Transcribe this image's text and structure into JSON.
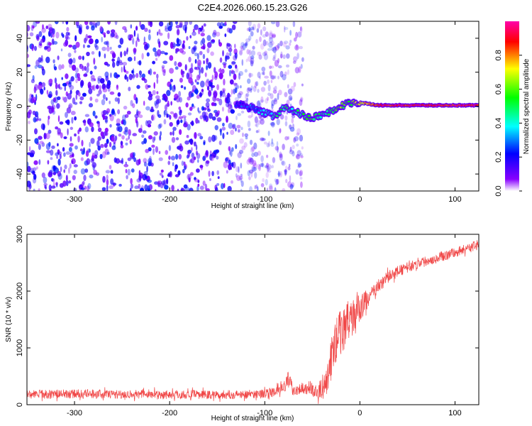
{
  "chart_data": [
    {
      "type": "heatmap",
      "title": "C2E4.2026.060.15.23.G26",
      "xlabel": "Height of straight line (km)",
      "ylabel": "Frequency (Hz)",
      "xlim": [
        -350,
        125
      ],
      "ylim": [
        -50,
        50
      ],
      "x_ticks": [
        -300,
        -200,
        -100,
        0,
        100
      ],
      "x_tick_labels": [
        "-300",
        "-200",
        "-100",
        "0",
        "100"
      ],
      "y_ticks": [
        -40,
        -20,
        0,
        20,
        40
      ],
      "y_tick_labels": [
        "-40",
        "-20",
        "0",
        "20",
        "40"
      ],
      "colorbar": {
        "label": "Normalized spectral amplitude",
        "range": [
          0,
          1
        ],
        "ticks": [
          0.0,
          0.2,
          0.4,
          0.6,
          0.8
        ],
        "tick_labels": [
          "0.0",
          "0.2",
          "0.4",
          "0.6",
          "0.8"
        ]
      },
      "ridge": {
        "x": [
          -130,
          -120,
          -110,
          -100,
          -90,
          -80,
          -70,
          -60,
          -50,
          -40,
          -30,
          -20,
          -10,
          0,
          20,
          60,
          125
        ],
        "y": [
          1,
          0,
          -2,
          -4,
          -6,
          -1,
          -3,
          -5,
          -7,
          -5,
          -3,
          0,
          2,
          2,
          0.5,
          0.5,
          0.5
        ],
        "amplitude": [
          0.2,
          0.25,
          0.3,
          0.35,
          0.4,
          0.5,
          0.45,
          0.5,
          0.55,
          0.45,
          0.5,
          0.6,
          0.55,
          0.7,
          0.9,
          0.9,
          0.9
        ]
      },
      "noise_region": {
        "x_end": -130,
        "amplitude_range": [
          0.05,
          0.25
        ]
      }
    },
    {
      "type": "line",
      "xlabel": "Height of straight line (km)",
      "ylabel": "SNR (10 * v/v)",
      "xlim": [
        -350,
        125
      ],
      "ylim": [
        0,
        3000
      ],
      "x_ticks": [
        -300,
        -200,
        -100,
        0,
        100
      ],
      "x_tick_labels": [
        "-300",
        "-200",
        "-100",
        "0",
        "100"
      ],
      "y_ticks": [
        0,
        1000,
        2000,
        3000
      ],
      "y_tick_labels": [
        "0",
        "1000",
        "2000",
        "3000"
      ],
      "series": [
        {
          "name": "SNR",
          "color": "#ee3333",
          "x": [
            -350,
            -300,
            -250,
            -200,
            -150,
            -120,
            -100,
            -90,
            -80,
            -75,
            -70,
            -60,
            -50,
            -45,
            -40,
            -35,
            -30,
            -25,
            -20,
            -15,
            -10,
            -5,
            0,
            5,
            10,
            20,
            30,
            40,
            60,
            80,
            100,
            125
          ],
          "y": [
            180,
            190,
            185,
            180,
            175,
            180,
            200,
            220,
            300,
            450,
            250,
            300,
            250,
            200,
            300,
            400,
            800,
            1150,
            1300,
            1400,
            1500,
            1600,
            1700,
            1800,
            1900,
            2100,
            2250,
            2350,
            2480,
            2580,
            2680,
            2820
          ],
          "noise_amplitude": [
            80,
            80,
            80,
            80,
            80,
            80,
            80,
            80,
            100,
            150,
            100,
            100,
            100,
            120,
            200,
            300,
            400,
            400,
            400,
            400,
            350,
            300,
            250,
            200,
            150,
            120,
            110,
            100,
            90,
            90,
            90,
            90
          ]
        }
      ]
    }
  ]
}
